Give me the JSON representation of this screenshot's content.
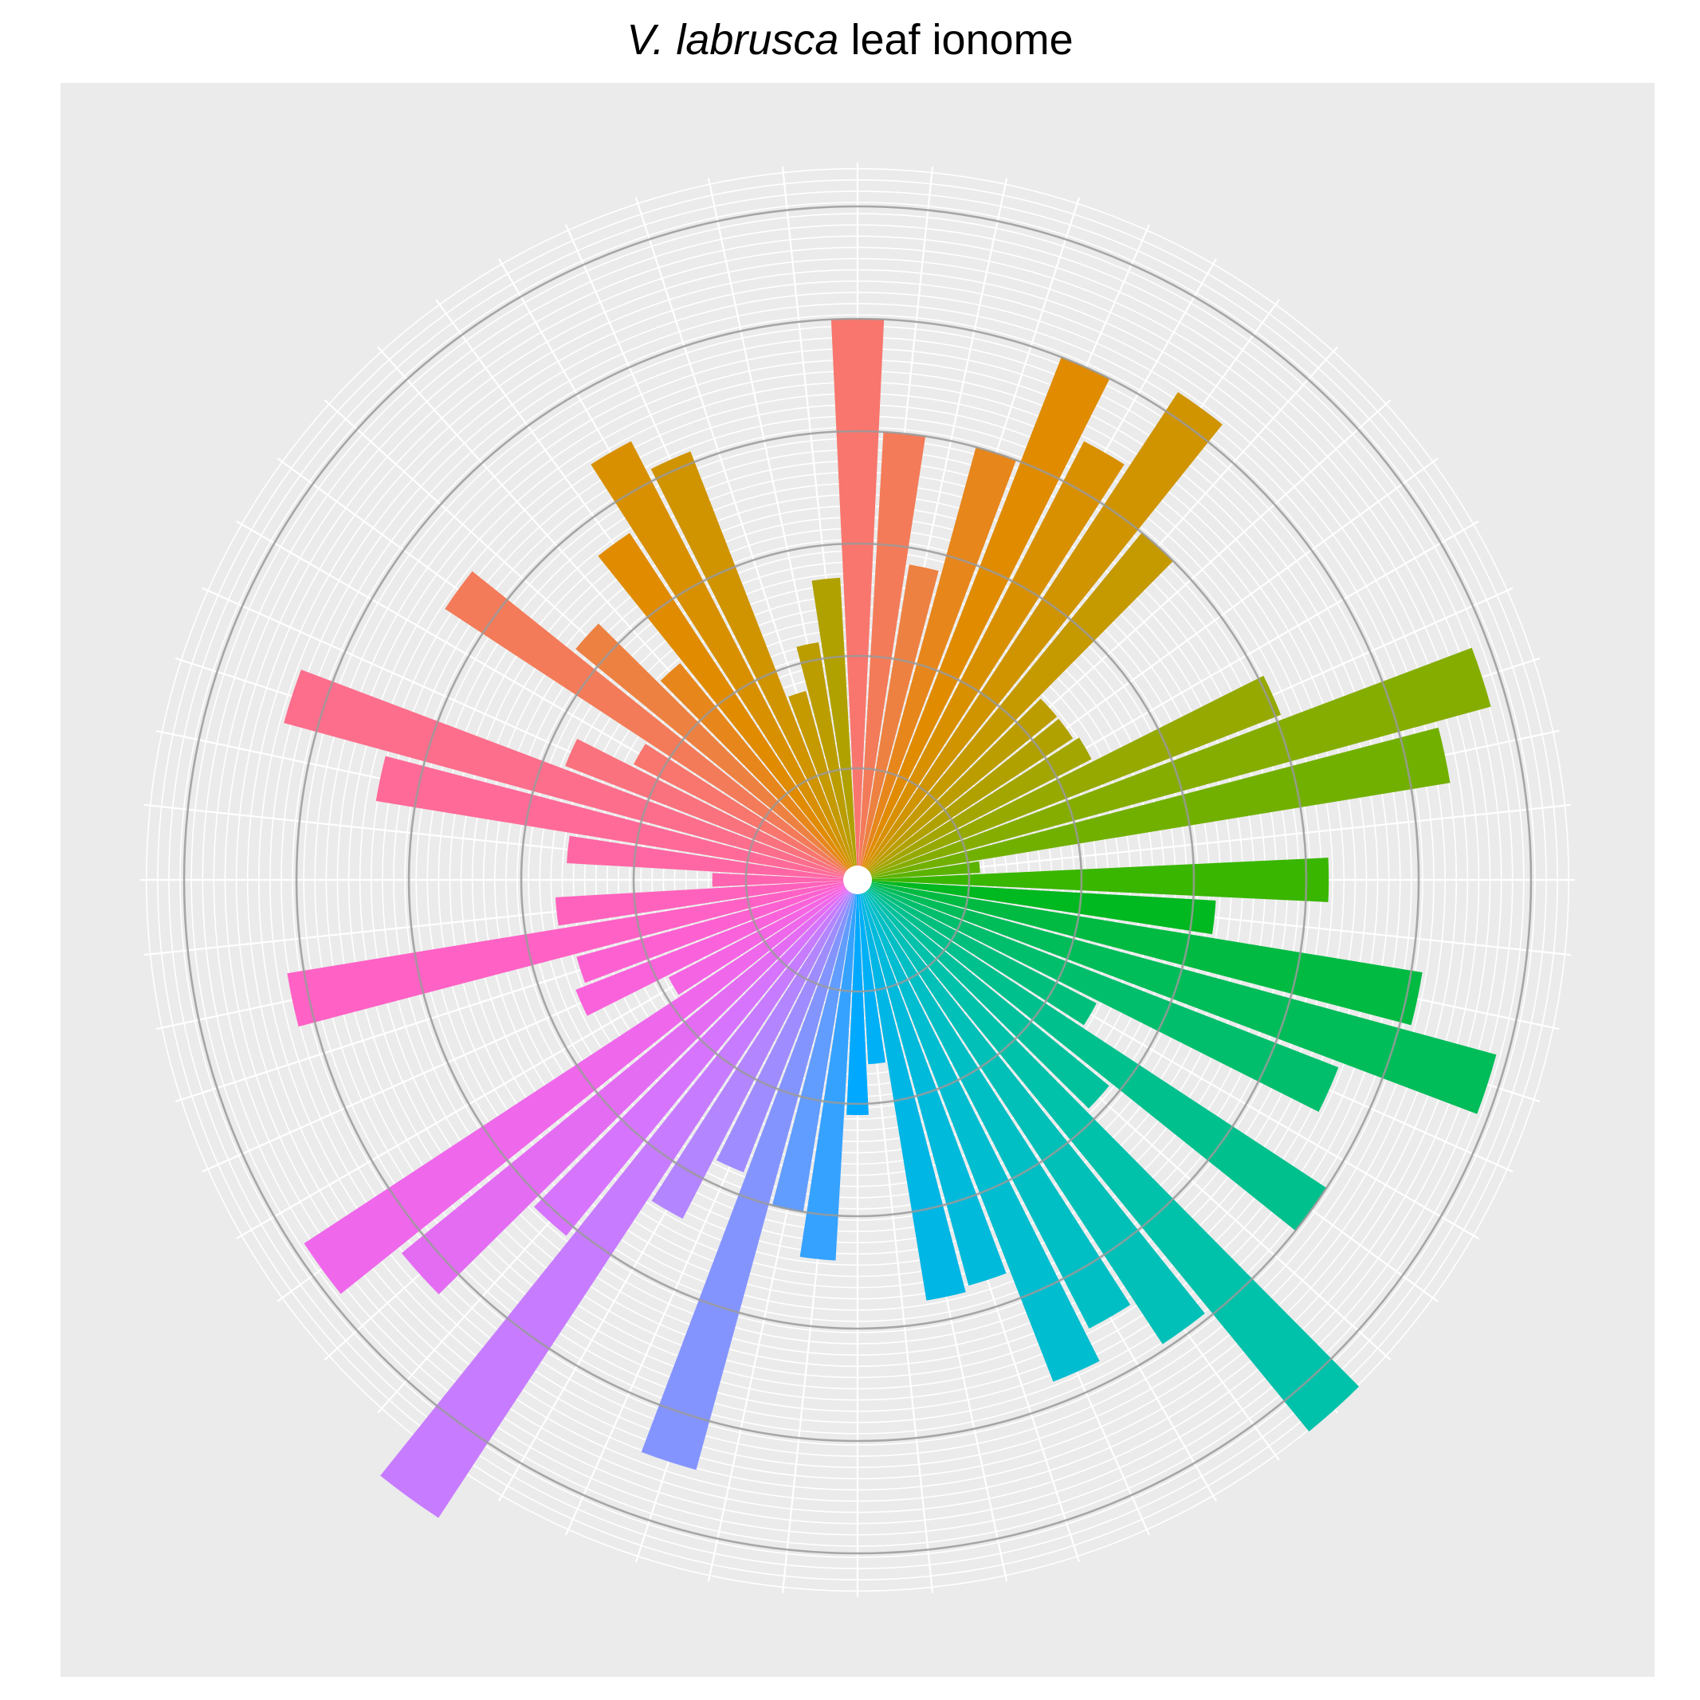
{
  "chart_data": {
    "type": "bar",
    "coord": "polar",
    "title": {
      "species": "V. labrusca",
      "rest": " leaf ionome"
    },
    "xlabel": "",
    "ylabel": "",
    "ylim": [
      -1,
      6
    ],
    "major_ring_values": [
      0,
      1,
      2,
      3,
      4,
      5
    ],
    "grid": true,
    "legend": "none",
    "colors": {
      "panel_background": "#EBEBEB",
      "grid_line": "#FFFFFF",
      "major_ring": "#9A9A9A"
    },
    "n_categories": 60,
    "series": [
      {
        "values": [
          4.0,
          3.0,
          1.85,
          3.0,
          4.0,
          3.4,
          4.2,
          3.0,
          1.3,
          1.3,
          1.35,
          3.05,
          4.85,
          4.35,
          0.1,
          3.2,
          2.2,
          4.1,
          4.9,
          3.6,
          1.4,
          4.0,
          1.9,
          5.35,
          3.95,
          3.5,
          3.8,
          2.75,
          2.8,
          0.65,
          1.1,
          2.4,
          2.0,
          4.45,
          1.8,
          2.4,
          5.8,
          3.1,
          4.25,
          4.9,
          0.9,
          1.7,
          1.6,
          4.15,
          1.7,
          0.3,
          1.6,
          3.35,
          4.3,
          1.8,
          1.25,
          3.4,
          2.25,
          1.5,
          2.7,
          3.4,
          3.1,
          0.75,
          1.15,
          1.7
        ],
        "colors": [
          "#F8766D",
          "#F37B59",
          "#ED8141",
          "#E7861B",
          "#E08B00",
          "#D89000",
          "#CF9400",
          "#C59900",
          "#BB9D00",
          "#B0A100",
          "#A3A500",
          "#95A900",
          "#85AD00",
          "#72B000",
          "#5BB300",
          "#39B600",
          "#00B81F",
          "#00BA42",
          "#00BC59",
          "#00BE6C",
          "#00BF7D",
          "#00C08D",
          "#00C19C",
          "#00C1AA",
          "#00C0B8",
          "#00BFC4",
          "#00BDD0",
          "#00BADB",
          "#00B6E5",
          "#00B0F6",
          "#00A9FF",
          "#35A2FF",
          "#619CFF",
          "#8494FF",
          "#9F8CFF",
          "#B385FF",
          "#C77CFF",
          "#D774FD",
          "#E46CF3",
          "#EF67EB",
          "#F564E3",
          "#FA62DB",
          "#FD61D1",
          "#FF61C5",
          "#FF62BC",
          "#FF64B0",
          "#FF67A4",
          "#FF6A98",
          "#FC6E8C",
          "#F9727D",
          "#F8766D",
          "#F37B59",
          "#ED8141",
          "#E7861B",
          "#E08B00",
          "#D89000",
          "#CF9400",
          "#C59900",
          "#BB9D00",
          "#B0A100"
        ]
      }
    ]
  }
}
